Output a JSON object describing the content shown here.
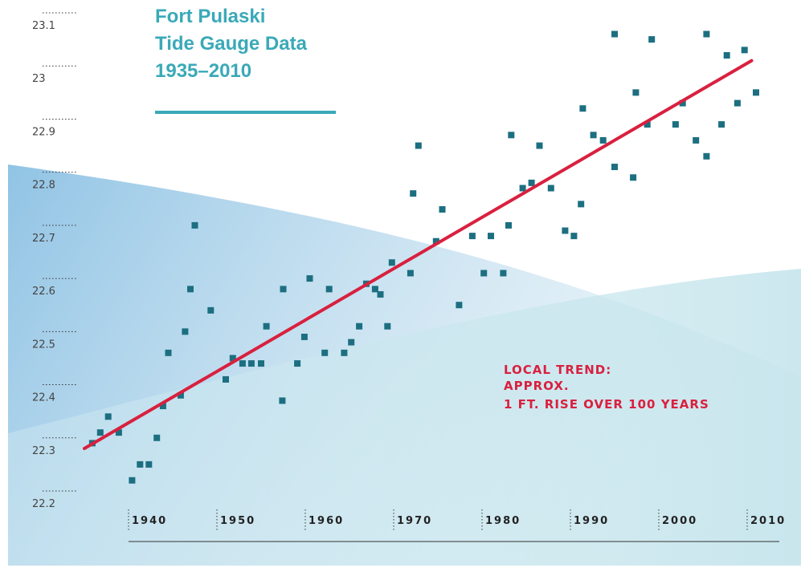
{
  "chart_data": {
    "type": "scatter",
    "title": [
      "Fort Pulaski",
      "Tide Gauge Data",
      "1935–2010"
    ],
    "annotation": [
      "LOCAL TREND:",
      "APPROX.",
      "1 FT. RISE OVER 100 YEARS"
    ],
    "x": [
      1935.9,
      1936.8,
      1937.7,
      1938.9,
      1940.4,
      1941.3,
      1942.3,
      1943.2,
      1943.9,
      1944.5,
      1945.9,
      1946.4,
      1947.0,
      1947.5,
      1949.3,
      1951.0,
      1951.8,
      1952.9,
      1953.9,
      1955.0,
      1955.6,
      1957.4,
      1957.5,
      1959.1,
      1959.9,
      1960.5,
      1962.2,
      1962.7,
      1964.4,
      1965.2,
      1966.1,
      1966.9,
      1967.9,
      1969.3,
      1968.5,
      1969.8,
      1971.9,
      1972.2,
      1972.8,
      1975.5,
      1974.8,
      1977.4,
      1978.9,
      1980.2,
      1981.0,
      1982.4,
      1983.0,
      1983.3,
      1984.6,
      1985.6,
      1986.5,
      1987.8,
      1989.4,
      1990.4,
      1991.2,
      1991.4,
      1992.6,
      1993.7,
      1995.0,
      1995.0,
      1997.1,
      1997.4,
      1998.7,
      1999.2,
      2001.9,
      2002.7,
      2004.2,
      2005.4,
      2005.4,
      2007.1,
      2007.7,
      2008.9,
      2009.7,
      2011.0
    ],
    "values": [
      22.29,
      22.31,
      22.34,
      22.31,
      22.22,
      22.25,
      22.25,
      22.3,
      22.36,
      22.46,
      22.38,
      22.5,
      22.58,
      22.7,
      22.54,
      22.41,
      22.45,
      22.44,
      22.44,
      22.44,
      22.51,
      22.37,
      22.58,
      22.44,
      22.49,
      22.6,
      22.46,
      22.58,
      22.46,
      22.48,
      22.51,
      22.59,
      22.58,
      22.51,
      22.57,
      22.63,
      22.61,
      22.76,
      22.85,
      22.73,
      22.67,
      22.55,
      22.68,
      22.61,
      22.68,
      22.61,
      22.7,
      22.87,
      22.77,
      22.78,
      22.85,
      22.77,
      22.69,
      22.68,
      22.74,
      22.92,
      22.87,
      22.86,
      23.06,
      22.81,
      22.79,
      22.95,
      22.89,
      23.05,
      22.89,
      22.93,
      22.86,
      23.06,
      22.83,
      22.89,
      23.02,
      22.93,
      23.03,
      22.95
    ],
    "color": "#1c6f80",
    "trend": {
      "x": [
        1935,
        2010.5
      ],
      "values": [
        22.28,
        23.01
      ],
      "color": "#d9203f"
    },
    "xlim": [
      1935,
      2012
    ],
    "xticks": [
      1940,
      1950,
      1960,
      1970,
      1980,
      1990,
      2000,
      2010
    ],
    "ylim": [
      22.2,
      23.1
    ],
    "yticks": [
      22.2,
      22.3,
      22.4,
      22.5,
      22.6,
      22.7,
      22.8,
      22.9,
      23,
      23.1
    ]
  }
}
